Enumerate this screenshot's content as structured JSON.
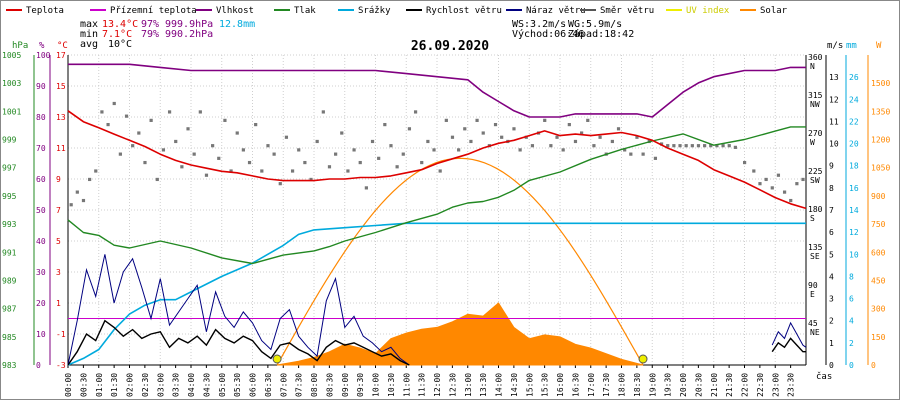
{
  "chart_data": {
    "type": "line",
    "title": "26.09.2020",
    "xlabel": "čas",
    "legend": [
      {
        "name": "Teplota",
        "color": "#dd0000"
      },
      {
        "name": "Přízemní teplota",
        "color": "#cc00cc"
      },
      {
        "name": "Vlhkost",
        "color": "#800080"
      },
      {
        "name": "Tlak",
        "color": "#228822"
      },
      {
        "name": "Srážky",
        "color": "#00aadd"
      },
      {
        "name": "Rychlost větru",
        "color": "#000000"
      },
      {
        "name": "Náraz větru",
        "color": "#000080"
      },
      {
        "name": "Směr větru",
        "color": "#555555"
      },
      {
        "name": "UV index",
        "color": "#eeee00"
      },
      {
        "name": "Solar",
        "color": "#ff8800"
      }
    ],
    "stats": {
      "max_label": "max",
      "max_temp": "13.4°C",
      "max_hum": "97%",
      "max_press": "999.9hPa",
      "rain": "12.8mm",
      "min_label": "min",
      "min_temp": "7.1°C",
      "min_hum": "79%",
      "min_press": "990.2hPa",
      "avg_label": "avg",
      "avg_temp": "10°C",
      "ws": "WS:3.2m/s",
      "wg": "WG:5.9m/s",
      "sunrise": "Východ:06:46",
      "sunset": "Západ:18:42"
    },
    "axes": {
      "hpa_title": "hPa",
      "hum_title": "%",
      "temp_title": "°C",
      "mm_title": "mm",
      "ms_title": "m/s",
      "w_title": "W",
      "hpa_ticks": [
        "1005",
        "1003",
        "1001",
        "999",
        "997",
        "995",
        "993",
        "991",
        "989",
        "987",
        "985",
        "983"
      ],
      "hum_ticks": [
        "100",
        "90",
        "80",
        "70",
        "60",
        "50",
        "40",
        "30",
        "20",
        "10",
        "0"
      ],
      "temp_ticks": [
        "17",
        "15",
        "13",
        "11",
        "9",
        "7",
        "5",
        "3",
        "1",
        "-1",
        "-3"
      ],
      "dir_ticks": [
        "360",
        "315",
        "270",
        "225",
        "180",
        "135",
        "90",
        "45"
      ],
      "dir_names": [
        "N",
        "NW",
        "W",
        "SW",
        "S",
        "SE",
        "E",
        "NE"
      ],
      "mm_ticks": [
        "26",
        "24",
        "22",
        "20",
        "18",
        "16",
        "14",
        "12",
        "10",
        "8",
        "6",
        "4",
        "2",
        "0"
      ],
      "ms_ticks": [
        "13",
        "12",
        "11",
        "10",
        "9",
        "8",
        "7",
        "6",
        "5",
        "4",
        "3",
        "2",
        "1",
        "0"
      ],
      "w_ticks": [
        "1500",
        "1350",
        "1200",
        "1050",
        "900",
        "750",
        "600",
        "450",
        "300",
        "150",
        "0"
      ],
      "x_ticks": [
        "00:00",
        "00:30",
        "01:00",
        "01:30",
        "02:00",
        "02:30",
        "03:00",
        "03:30",
        "04:00",
        "04:30",
        "05:00",
        "05:30",
        "06:00",
        "06:30",
        "07:00",
        "07:30",
        "08:00",
        "08:30",
        "09:00",
        "09:30",
        "10:00",
        "10:30",
        "11:00",
        "11:30",
        "12:00",
        "12:30",
        "13:00",
        "13:30",
        "14:00",
        "14:30",
        "15:00",
        "15:30",
        "16:00",
        "16:30",
        "17:00",
        "17:30",
        "18:00",
        "18:30",
        "19:00",
        "19:30",
        "20:00",
        "20:30",
        "21:00",
        "21:30",
        "22:00",
        "22:30",
        "23:00",
        "23:30"
      ]
    },
    "series": [
      {
        "name": "Teplota",
        "unit": "°C",
        "x_hours": [
          0,
          0.5,
          1,
          1.5,
          2,
          2.5,
          3,
          3.5,
          4,
          4.5,
          5,
          5.5,
          6,
          6.5,
          7,
          7.5,
          8,
          8.5,
          9,
          9.5,
          10,
          10.5,
          11,
          11.5,
          12,
          12.5,
          13,
          13.5,
          14,
          14.5,
          15,
          15.5,
          16,
          16.5,
          17,
          17.5,
          18,
          18.5,
          19,
          19.5,
          20,
          20.5,
          21,
          21.5,
          22,
          22.5,
          23,
          23.5,
          24
        ],
        "values": [
          13.4,
          12.7,
          12.3,
          11.9,
          11.5,
          11.1,
          10.6,
          10.2,
          9.9,
          9.7,
          9.5,
          9.4,
          9.2,
          9.0,
          8.9,
          8.9,
          8.9,
          9.0,
          9.0,
          9.1,
          9.1,
          9.2,
          9.4,
          9.6,
          10.0,
          10.3,
          10.6,
          11.0,
          11.3,
          11.5,
          11.8,
          12.1,
          11.8,
          11.9,
          11.8,
          11.9,
          12.0,
          11.8,
          11.5,
          11.0,
          10.6,
          10.2,
          9.6,
          9.2,
          8.8,
          8.3,
          7.8,
          7.4,
          7.1
        ]
      },
      {
        "name": "Vlhkost",
        "unit": "%",
        "x_hours": [
          0,
          0.5,
          1,
          2,
          3,
          4,
          5,
          6,
          7,
          8,
          9,
          10,
          11,
          12,
          13,
          13.5,
          14,
          14.5,
          15,
          15.5,
          16,
          16.5,
          17,
          17.5,
          18,
          18.5,
          19,
          19.5,
          20,
          20.5,
          21,
          22,
          23,
          23.5,
          24
        ],
        "values": [
          97,
          97,
          97,
          97,
          96,
          95,
          95,
          95,
          95,
          95,
          95,
          95,
          94,
          93,
          92,
          88,
          85,
          82,
          80,
          80,
          80,
          81,
          81,
          81,
          81,
          81,
          80,
          84,
          88,
          91,
          93,
          95,
          95,
          96,
          96
        ]
      },
      {
        "name": "Tlak",
        "unit": "hPa",
        "x_hours": [
          0,
          0.5,
          1,
          1.5,
          2,
          3,
          4,
          5,
          6,
          7,
          8,
          8.5,
          9,
          10,
          11,
          12,
          12.5,
          13,
          13.5,
          14,
          14.5,
          15,
          16,
          17,
          18,
          19,
          20,
          21,
          22,
          23,
          23.5,
          24
        ],
        "values": [
          993.3,
          992.4,
          992.2,
          991.5,
          991.3,
          991.8,
          991.3,
          990.6,
          990.2,
          990.8,
          991.1,
          991.4,
          991.8,
          992.4,
          993.1,
          993.7,
          994.2,
          994.5,
          994.6,
          994.9,
          995.4,
          996.1,
          996.7,
          997.6,
          998.3,
          998.9,
          999.4,
          998.6,
          999.0,
          999.6,
          999.9,
          999.9
        ]
      },
      {
        "name": "Srážky",
        "unit": "mm",
        "x_hours": [
          0,
          0.5,
          1,
          1.5,
          2,
          2.5,
          3,
          3.5,
          4,
          5,
          6,
          7,
          7.5,
          8,
          9,
          10,
          11,
          24
        ],
        "values": [
          0,
          0.6,
          1.4,
          3.2,
          4.6,
          5.4,
          5.9,
          5.9,
          6.6,
          8.0,
          9.2,
          10.8,
          11.8,
          12.2,
          12.4,
          12.6,
          12.8,
          12.8
        ]
      },
      {
        "name": "Solar",
        "unit": "W",
        "x_hours": [
          6.8,
          7.5,
          8,
          8.5,
          9,
          9.5,
          10,
          10.5,
          11,
          11.5,
          12,
          12.5,
          13,
          13.5,
          14,
          14.5,
          15,
          15.5,
          16,
          16.5,
          17,
          17.5,
          18,
          18.7
        ],
        "values": [
          0,
          20,
          40,
          70,
          110,
          90,
          60,
          140,
          170,
          190,
          200,
          230,
          270,
          260,
          330,
          200,
          140,
          160,
          150,
          110,
          90,
          60,
          30,
          0
        ]
      }
    ],
    "wind": {
      "unit": "m/s",
      "x_hours": [
        0,
        0.3,
        0.6,
        0.9,
        1.2,
        1.5,
        1.8,
        2.1,
        2.4,
        2.7,
        3.0,
        3.3,
        3.6,
        3.9,
        4.2,
        4.5,
        4.8,
        5.1,
        5.4,
        5.7,
        6.0,
        6.3,
        6.6,
        6.9,
        7.2,
        7.5,
        7.8,
        8.1,
        8.4,
        8.7,
        9.0,
        9.3,
        9.6,
        9.9,
        10.2,
        10.5,
        10.8,
        11.1
      ],
      "speed": [
        0,
        0.6,
        1.4,
        1.1,
        2.0,
        1.7,
        1.3,
        1.6,
        1.2,
        1.4,
        1.5,
        0.8,
        1.2,
        1.0,
        1.3,
        0.9,
        1.6,
        1.2,
        1.0,
        1.3,
        1.1,
        0.6,
        0.3,
        0.9,
        1.0,
        0.7,
        0.5,
        0.2,
        0.8,
        1.1,
        0.9,
        1.0,
        0.8,
        0.6,
        0.4,
        0.5,
        0.2,
        0
      ],
      "gust": [
        0,
        2.0,
        4.3,
        3.1,
        5.0,
        2.8,
        4.2,
        4.8,
        3.5,
        2.1,
        3.9,
        1.8,
        2.4,
        3.0,
        3.6,
        1.5,
        3.3,
        2.2,
        1.7,
        2.4,
        1.9,
        1.1,
        0.7,
        2.1,
        2.5,
        1.3,
        0.8,
        0.4,
        2.9,
        3.9,
        1.7,
        2.2,
        1.3,
        1.0,
        0.6,
        0.8,
        0.3,
        0
      ],
      "late_x_hours": [
        22.9,
        23.1,
        23.3,
        23.5,
        23.7,
        23.9,
        24
      ],
      "late_speed": [
        0.6,
        1.0,
        0.8,
        1.2,
        0.9,
        0.6,
        0.6
      ],
      "late_gust": [
        0.9,
        1.5,
        1.2,
        1.9,
        1.4,
        0.9,
        0.8
      ]
    },
    "wind_direction": {
      "unit": "°",
      "points": [
        [
          0.1,
          190
        ],
        [
          0.3,
          205
        ],
        [
          0.5,
          195
        ],
        [
          0.7,
          220
        ],
        [
          0.9,
          230
        ],
        [
          1.1,
          300
        ],
        [
          1.3,
          285
        ],
        [
          1.5,
          310
        ],
        [
          1.7,
          250
        ],
        [
          1.9,
          295
        ],
        [
          2.1,
          260
        ],
        [
          2.3,
          275
        ],
        [
          2.5,
          240
        ],
        [
          2.7,
          290
        ],
        [
          2.9,
          220
        ],
        [
          3.1,
          255
        ],
        [
          3.3,
          300
        ],
        [
          3.5,
          265
        ],
        [
          3.7,
          235
        ],
        [
          3.9,
          280
        ],
        [
          4.1,
          250
        ],
        [
          4.3,
          300
        ],
        [
          4.5,
          225
        ],
        [
          4.7,
          260
        ],
        [
          4.9,
          245
        ],
        [
          5.1,
          290
        ],
        [
          5.3,
          230
        ],
        [
          5.5,
          275
        ],
        [
          5.7,
          255
        ],
        [
          5.9,
          240
        ],
        [
          6.1,
          285
        ],
        [
          6.3,
          230
        ],
        [
          6.5,
          260
        ],
        [
          6.7,
          250
        ],
        [
          6.9,
          215
        ],
        [
          7.1,
          270
        ],
        [
          7.3,
          230
        ],
        [
          7.5,
          255
        ],
        [
          7.7,
          240
        ],
        [
          7.9,
          220
        ],
        [
          8.1,
          265
        ],
        [
          8.3,
          300
        ],
        [
          8.5,
          235
        ],
        [
          8.7,
          250
        ],
        [
          8.9,
          275
        ],
        [
          9.1,
          230
        ],
        [
          9.3,
          255
        ],
        [
          9.5,
          240
        ],
        [
          9.7,
          210
        ],
        [
          9.9,
          265
        ],
        [
          10.1,
          245
        ],
        [
          10.3,
          285
        ],
        [
          10.5,
          260
        ],
        [
          10.7,
          235
        ],
        [
          10.9,
          250
        ],
        [
          11.1,
          280
        ],
        [
          11.3,
          300
        ],
        [
          11.5,
          240
        ],
        [
          11.7,
          265
        ],
        [
          11.9,
          255
        ],
        [
          12.1,
          230
        ],
        [
          12.3,
          290
        ],
        [
          12.5,
          270
        ],
        [
          12.7,
          255
        ],
        [
          12.9,
          280
        ],
        [
          13.1,
          265
        ],
        [
          13.3,
          290
        ],
        [
          13.5,
          275
        ],
        [
          13.7,
          260
        ],
        [
          13.9,
          285
        ],
        [
          14.1,
          270
        ],
        [
          14.3,
          265
        ],
        [
          14.5,
          280
        ],
        [
          14.7,
          255
        ],
        [
          14.9,
          270
        ],
        [
          15.1,
          260
        ],
        [
          15.3,
          275
        ],
        [
          15.5,
          290
        ],
        [
          15.7,
          260
        ],
        [
          15.9,
          270
        ],
        [
          16.1,
          255
        ],
        [
          16.3,
          285
        ],
        [
          16.5,
          265
        ],
        [
          16.7,
          275
        ],
        [
          16.9,
          290
        ],
        [
          17.1,
          260
        ],
        [
          17.3,
          270
        ],
        [
          17.5,
          250
        ],
        [
          17.7,
          265
        ],
        [
          17.9,
          280
        ],
        [
          18.1,
          255
        ],
        [
          18.3,
          250
        ],
        [
          18.5,
          270
        ],
        [
          18.7,
          250
        ],
        [
          18.9,
          265
        ],
        [
          19.1,
          245
        ],
        [
          19.3,
          262
        ],
        [
          19.5,
          260
        ],
        [
          19.7,
          260
        ],
        [
          19.9,
          260
        ],
        [
          20.1,
          260
        ],
        [
          20.3,
          260
        ],
        [
          20.5,
          260
        ],
        [
          20.7,
          260
        ],
        [
          20.9,
          260
        ],
        [
          21.1,
          260
        ],
        [
          21.3,
          260
        ],
        [
          21.5,
          260
        ],
        [
          21.7,
          258
        ],
        [
          22.0,
          240
        ],
        [
          22.3,
          230
        ],
        [
          22.5,
          215
        ],
        [
          22.7,
          220
        ],
        [
          22.9,
          210
        ],
        [
          23.1,
          225
        ],
        [
          23.3,
          205
        ],
        [
          23.5,
          195
        ],
        [
          23.7,
          215
        ],
        [
          23.9,
          220
        ]
      ]
    },
    "uv_markers_hours": [
      6.8,
      18.7
    ]
  }
}
